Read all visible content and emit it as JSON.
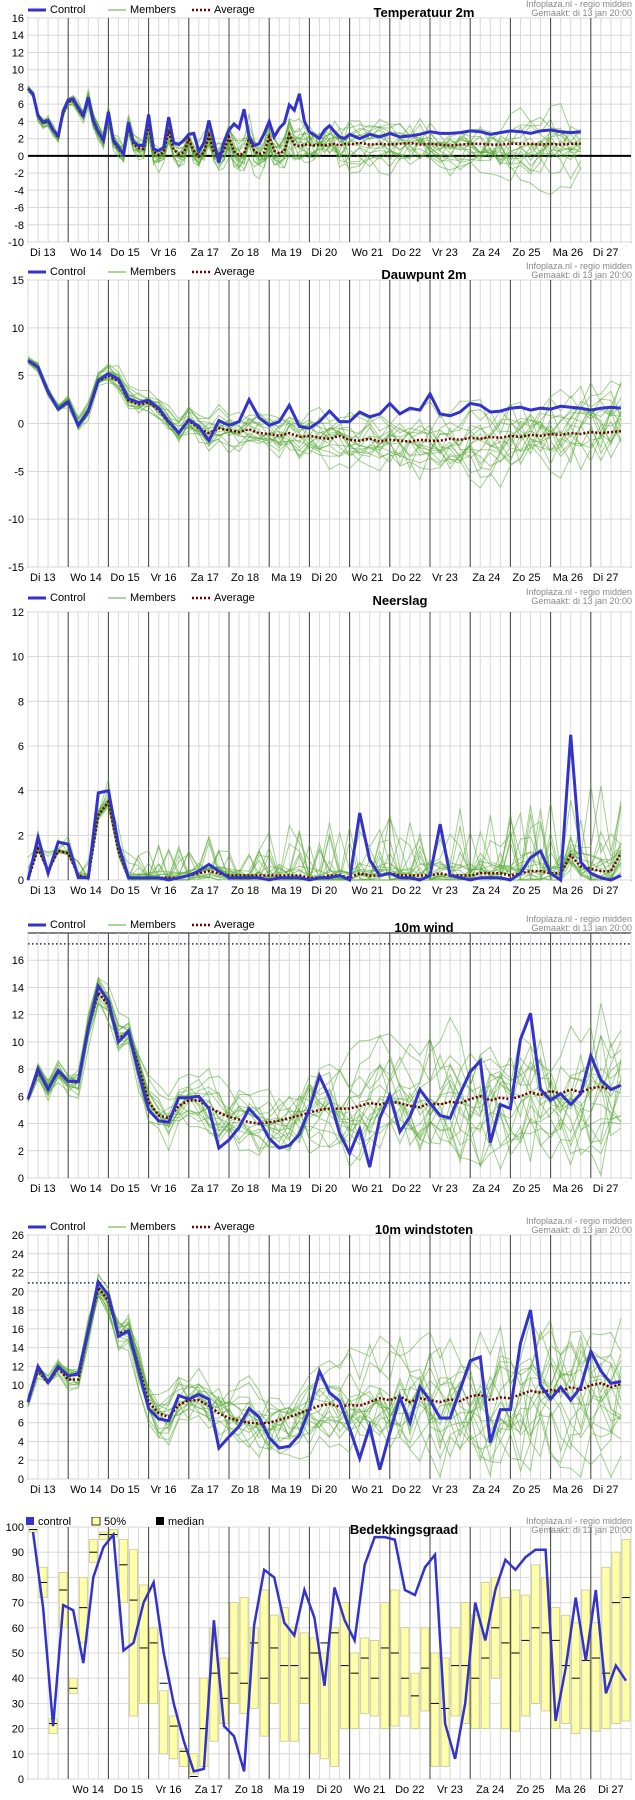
{
  "credit_line1": "Infoplaza.nl - regio midden",
  "credit_line2": "Gemaakt: di 13 jan 20:00",
  "day_labels": [
    "Di 13",
    "Wo 14",
    "Do 15",
    "Vr 16",
    "Za 17",
    "Zo 18",
    "Ma 19",
    "Di 20",
    "Wo 21",
    "Do 22",
    "Vr 23",
    "Za 24",
    "Zo 25",
    "Ma 26",
    "Di 27"
  ],
  "colors": {
    "control": "#3333cc",
    "members": "#55aa33",
    "average": "#6b0000",
    "grid": "#d8d8d8",
    "daysep": "#444444",
    "box": "#ffffaa"
  },
  "chart_data": [
    {
      "type": "line",
      "title": "Temperatuur 2m",
      "legend": [
        "Control",
        "Members",
        "Average"
      ],
      "ylim": [
        -10,
        16
      ],
      "yticks": [
        -10,
        -8,
        -6,
        -4,
        -2,
        0,
        2,
        4,
        6,
        8,
        10,
        12,
        14,
        16
      ],
      "zero_line": true,
      "x": [
        0,
        0.125,
        0.25,
        0.375,
        0.5,
        0.625,
        0.75,
        0.875,
        1,
        1.125,
        1.25,
        1.375,
        1.5,
        1.625,
        1.75,
        1.875,
        2,
        2.125,
        2.25,
        2.375,
        2.5,
        2.625,
        2.75,
        2.875,
        3,
        3.125,
        3.25,
        3.375,
        3.5,
        3.625,
        3.75,
        3.875,
        4,
        4.125,
        4.25,
        4.375,
        4.5,
        4.625,
        4.75,
        4.875,
        5,
        5.125,
        5.25,
        5.375,
        5.5,
        5.625,
        5.75,
        5.875,
        6,
        6.125,
        6.25,
        6.375,
        6.5,
        6.625,
        6.75,
        6.875,
        7,
        7.125,
        7.25,
        7.375,
        7.5,
        7.625,
        7.75,
        7.875,
        8,
        8.25,
        8.5,
        8.75,
        9,
        9.25,
        9.5,
        9.75,
        10,
        10.25,
        10.5,
        10.75,
        11,
        11.25,
        11.5,
        11.75,
        12,
        12.25,
        12.5,
        12.75,
        13,
        13.25,
        13.5,
        13.75,
        14,
        14.25,
        14.5,
        14.75
      ],
      "control": [
        7.8,
        7.2,
        4.7,
        3.9,
        4.1,
        3.0,
        2.3,
        5.2,
        6.5,
        6.6,
        5.6,
        4.7,
        6.8,
        4.1,
        2.8,
        1.8,
        5.1,
        1.8,
        1.0,
        0.2,
        3.9,
        1.6,
        1.2,
        1.2,
        4.8,
        0.8,
        0.6,
        1.0,
        4.5,
        1.5,
        1.3,
        1.8,
        2.5,
        2.6,
        0.5,
        1.5,
        4.1,
        1.7,
        -0.8,
        1.6,
        3.0,
        3.7,
        3.2,
        5.4,
        2.2,
        1.2,
        1.4,
        2.6,
        4.0,
        2.2,
        3.2,
        3.8,
        5.9,
        5.3,
        7.2,
        4.0,
        2.8,
        2.4,
        2.0,
        3.0,
        3.5,
        2.8,
        2.2,
        2.0,
        2.5,
        2.0,
        2.5,
        2.2,
        2.6,
        2.2,
        2.3,
        2.5,
        2.8,
        2.6,
        2.6,
        2.7,
        2.9,
        2.8,
        2.5,
        2.7,
        2.9,
        2.8,
        2.6,
        2.9,
        3.0,
        2.8,
        2.7,
        2.8
      ],
      "average": [
        7.8,
        7.1,
        4.6,
        3.8,
        4.0,
        3.0,
        2.2,
        5.0,
        6.3,
        6.4,
        5.5,
        4.5,
        6.6,
        4.0,
        2.7,
        1.7,
        4.8,
        1.7,
        0.8,
        0.2,
        3.5,
        1.4,
        0.9,
        0.8,
        3.7,
        0.5,
        0.1,
        0.4,
        3.0,
        0.7,
        0.2,
        0.4,
        1.9,
        0.6,
        -0.1,
        0.4,
        2.4,
        0.4,
        0.2,
        0.6,
        2.2,
        0.5,
        0.1,
        0.3,
        2.1,
        0.6,
        0.2,
        0.4,
        2.2,
        0.6,
        0.3,
        0.5,
        2.5,
        1.3,
        1.1,
        1.3,
        1.3,
        1.2,
        1.3,
        1.2,
        1.3,
        1.4,
        1.2,
        1.4,
        1.3,
        1.5,
        1.3,
        1.4,
        1.3,
        1.4,
        1.5,
        1.3,
        1.4,
        1.3,
        1.2,
        1.3,
        1.4,
        1.4,
        1.3,
        1.3,
        1.4,
        1.4,
        1.4,
        1.3,
        1.4,
        1.3,
        1.4,
        1.4
      ]
    },
    {
      "type": "line",
      "title": "Dauwpunt 2m",
      "legend": [
        "Control",
        "Members",
        "Average"
      ],
      "ylim": [
        -15,
        15
      ],
      "yticks": [
        -15,
        -10,
        -5,
        0,
        5,
        10,
        15
      ],
      "x": [
        0,
        0.25,
        0.5,
        0.75,
        1,
        1.25,
        1.5,
        1.75,
        2,
        2.25,
        2.5,
        2.75,
        3,
        3.25,
        3.5,
        3.75,
        4,
        4.25,
        4.5,
        4.75,
        5,
        5.25,
        5.5,
        5.75,
        6,
        6.25,
        6.5,
        6.75,
        7,
        7.25,
        7.5,
        7.75,
        8,
        8.25,
        8.5,
        8.75,
        9,
        9.25,
        9.5,
        9.75,
        10,
        10.25,
        10.5,
        10.75,
        11,
        11.25,
        11.5,
        11.75,
        12,
        12.25,
        12.5,
        12.75,
        13,
        13.25,
        13.5,
        13.75,
        14,
        14.25,
        14.5,
        14.75
      ],
      "control": [
        6.6,
        5.9,
        3.3,
        1.5,
        2.3,
        -0.2,
        1.3,
        4.5,
        5.2,
        4.6,
        2.6,
        2.2,
        2.4,
        1.6,
        0.2,
        -1.0,
        0.4,
        -0.3,
        -1.8,
        0.3,
        -0.2,
        0.2,
        2.5,
        0.6,
        -0.2,
        0.2,
        1.9,
        -0.3,
        -0.5,
        0.2,
        1.3,
        0.2,
        0.2,
        1.2,
        0.7,
        1.0,
        2.1,
        1.0,
        1.6,
        1.4,
        3.1,
        1.0,
        0.8,
        1.2,
        2.1,
        1.9,
        1.2,
        1.3,
        1.6,
        1.7,
        1.4,
        1.6,
        1.5,
        1.8,
        1.7,
        1.6,
        1.4,
        1.6,
        1.7,
        1.6
      ],
      "average": [
        6.6,
        5.9,
        3.2,
        1.5,
        2.2,
        -0.2,
        1.2,
        4.4,
        5.0,
        4.4,
        2.4,
        2.0,
        2.2,
        1.4,
        0.1,
        -1.0,
        0.3,
        -0.5,
        -1.0,
        -0.5,
        -0.7,
        -0.9,
        -0.6,
        -1.0,
        -1.1,
        -1.3,
        -1.0,
        -1.4,
        -1.3,
        -1.5,
        -1.6,
        -1.3,
        -1.7,
        -1.8,
        -1.6,
        -1.9,
        -1.7,
        -1.8,
        -1.9,
        -1.7,
        -1.8,
        -1.8,
        -1.6,
        -1.7,
        -1.5,
        -1.6,
        -1.4,
        -1.5,
        -1.3,
        -1.4,
        -1.2,
        -1.3,
        -1.1,
        -1.2,
        -1.0,
        -1.1,
        -0.9,
        -1.0,
        -0.9,
        -0.8
      ]
    },
    {
      "type": "line",
      "title": "Neerslag",
      "legend": [
        "Control",
        "Members",
        "Average"
      ],
      "ylim": [
        0,
        12
      ],
      "yticks": [
        0,
        2,
        4,
        6,
        8,
        10,
        12
      ],
      "x": [
        0,
        0.25,
        0.5,
        0.75,
        1,
        1.25,
        1.5,
        1.75,
        2,
        2.25,
        2.5,
        2.75,
        3,
        3.25,
        3.5,
        3.75,
        4,
        4.25,
        4.5,
        4.75,
        5,
        5.25,
        5.5,
        5.75,
        6,
        6.25,
        6.5,
        6.75,
        7,
        7.25,
        7.5,
        7.75,
        8,
        8.25,
        8.5,
        8.75,
        9,
        9.25,
        9.5,
        9.75,
        10,
        10.25,
        10.5,
        10.75,
        11,
        11.25,
        11.5,
        11.75,
        12,
        12.25,
        12.5,
        12.75,
        13,
        13.25,
        13.5,
        13.75,
        14,
        14.25,
        14.5,
        14.75
      ],
      "control": [
        0.0,
        1.9,
        0.3,
        1.7,
        1.6,
        0.1,
        0.1,
        3.9,
        4.0,
        1.6,
        0.1,
        0.1,
        0.1,
        0.1,
        0.0,
        0.1,
        0.2,
        0.4,
        0.7,
        0.4,
        0.1,
        0.1,
        0.1,
        0.1,
        0.0,
        0.1,
        0.1,
        0.1,
        0.0,
        0.1,
        0.1,
        0.2,
        0.0,
        3.0,
        0.9,
        0.2,
        0.3,
        0.1,
        0.1,
        0.0,
        0.2,
        2.5,
        0.2,
        0.1,
        0.0,
        0.1,
        0.1,
        0.1,
        0.0,
        0.3,
        1.0,
        1.3,
        0.3,
        0.0,
        6.5,
        0.8,
        0.3,
        0.1,
        0.0,
        0.2
      ],
      "average": [
        0.0,
        1.4,
        0.4,
        1.3,
        1.2,
        0.2,
        0.1,
        2.9,
        3.5,
        1.3,
        0.1,
        0.1,
        0.1,
        0.1,
        0.1,
        0.1,
        0.2,
        0.3,
        0.4,
        0.3,
        0.2,
        0.2,
        0.2,
        0.2,
        0.2,
        0.2,
        0.2,
        0.2,
        0.1,
        0.1,
        0.2,
        0.2,
        0.1,
        0.3,
        0.2,
        0.2,
        0.3,
        0.2,
        0.2,
        0.2,
        0.2,
        0.3,
        0.2,
        0.2,
        0.2,
        0.3,
        0.3,
        0.3,
        0.2,
        0.3,
        0.4,
        0.4,
        0.3,
        0.3,
        1.1,
        0.6,
        0.5,
        0.4,
        0.4,
        1.2
      ]
    },
    {
      "type": "line",
      "title": "10m wind",
      "legend": [
        "Control",
        "Members",
        "Average"
      ],
      "ylim": [
        0,
        18
      ],
      "yticks": [
        0,
        2,
        4,
        6,
        8,
        10,
        12,
        14,
        16
      ],
      "threshold": 17.2,
      "x": [
        0,
        0.25,
        0.5,
        0.75,
        1,
        1.25,
        1.5,
        1.75,
        2,
        2.25,
        2.5,
        2.75,
        3,
        3.25,
        3.5,
        3.75,
        4,
        4.25,
        4.5,
        4.75,
        5,
        5.25,
        5.5,
        5.75,
        6,
        6.25,
        6.5,
        6.75,
        7,
        7.25,
        7.5,
        7.75,
        8,
        8.25,
        8.5,
        8.75,
        9,
        9.25,
        9.5,
        9.75,
        10,
        10.25,
        10.5,
        10.75,
        11,
        11.25,
        11.5,
        11.75,
        12,
        12.25,
        12.5,
        12.75,
        13,
        13.25,
        13.5,
        13.75,
        14,
        14.25,
        14.5,
        14.75
      ],
      "control": [
        5.8,
        8.0,
        6.5,
        7.9,
        7.1,
        7.1,
        11.0,
        14.1,
        13.0,
        10.0,
        10.8,
        7.7,
        5.0,
        4.2,
        4.1,
        5.9,
        5.9,
        6.0,
        5.1,
        2.2,
        2.8,
        3.7,
        5.1,
        4.3,
        2.9,
        2.2,
        2.4,
        3.2,
        5.1,
        7.5,
        5.9,
        3.3,
        1.8,
        3.6,
        0.8,
        4.4,
        6.1,
        3.4,
        4.5,
        6.5,
        5.5,
        4.6,
        4.4,
        6.2,
        7.8,
        8.6,
        2.6,
        5.4,
        5.1,
        10.2,
        12.1,
        6.5,
        5.7,
        6.2,
        5.4,
        6.2,
        9.0,
        7.2,
        6.5,
        6.8
      ],
      "average": [
        5.8,
        7.8,
        6.6,
        7.8,
        7.1,
        7.0,
        11.0,
        13.6,
        12.7,
        10.3,
        10.6,
        8.2,
        5.6,
        4.6,
        4.4,
        5.3,
        5.7,
        5.7,
        5.2,
        4.8,
        4.5,
        4.3,
        4.1,
        4.0,
        4.1,
        4.2,
        4.4,
        4.6,
        4.8,
        5.0,
        5.1,
        5.1,
        5.1,
        5.3,
        5.5,
        5.4,
        5.6,
        5.5,
        5.3,
        5.2,
        5.5,
        5.4,
        5.6,
        5.5,
        5.8,
        6.0,
        5.7,
        5.9,
        5.8,
        6.0,
        6.3,
        6.1,
        6.4,
        6.2,
        6.5,
        6.3,
        6.6,
        6.7,
        6.5,
        6.8
      ]
    },
    {
      "type": "line",
      "title": "10m windstoten",
      "legend": [
        "Control",
        "Members",
        "Average"
      ],
      "ylim": [
        0,
        26
      ],
      "yticks": [
        0,
        2,
        4,
        6,
        8,
        10,
        12,
        14,
        16,
        18,
        20,
        22,
        24,
        26
      ],
      "threshold": 20.9,
      "x": [
        0,
        0.25,
        0.5,
        0.75,
        1,
        1.25,
        1.5,
        1.75,
        2,
        2.25,
        2.5,
        2.75,
        3,
        3.25,
        3.5,
        3.75,
        4,
        4.25,
        4.5,
        4.75,
        5,
        5.25,
        5.5,
        5.75,
        6,
        6.25,
        6.5,
        6.75,
        7,
        7.25,
        7.5,
        7.75,
        8,
        8.25,
        8.5,
        8.75,
        9,
        9.25,
        9.5,
        9.75,
        10,
        10.25,
        10.5,
        10.75,
        11,
        11.25,
        11.5,
        11.75,
        12,
        12.25,
        12.5,
        12.75,
        13,
        13.25,
        13.5,
        13.75,
        14,
        14.25,
        14.5,
        14.75
      ],
      "control": [
        8.2,
        12.0,
        10.3,
        12.0,
        11.0,
        11.2,
        15.8,
        21.0,
        19.6,
        15.2,
        15.8,
        11.6,
        7.5,
        6.4,
        6.2,
        8.9,
        8.5,
        9.0,
        8.5,
        3.3,
        4.5,
        5.6,
        7.5,
        6.6,
        4.4,
        3.3,
        3.5,
        4.7,
        7.4,
        11.5,
        9.2,
        8.3,
        5.4,
        2.2,
        5.6,
        1.0,
        4.9,
        8.7,
        6.0,
        9.8,
        8.4,
        6.5,
        6.5,
        9.5,
        12.6,
        13.0,
        3.9,
        7.4,
        7.4,
        14.5,
        18.0,
        10.0,
        8.5,
        9.8,
        8.4,
        9.8,
        13.6,
        11.5,
        10.2,
        10.4
      ],
      "average": [
        8.2,
        11.6,
        10.2,
        11.8,
        10.6,
        10.6,
        15.8,
        20.4,
        19.0,
        15.5,
        15.8,
        12.0,
        8.2,
        7.0,
        6.6,
        7.9,
        8.4,
        8.4,
        7.8,
        7.0,
        6.5,
        6.2,
        6.0,
        5.9,
        6.0,
        6.3,
        6.6,
        7.0,
        7.4,
        7.8,
        8.0,
        7.7,
        7.9,
        7.8,
        8.2,
        8.6,
        8.4,
        8.8,
        8.2,
        8.6,
        8.4,
        8.2,
        8.5,
        8.3,
        8.8,
        9.0,
        8.4,
        8.7,
        8.6,
        9.0,
        9.4,
        9.2,
        9.5,
        9.3,
        9.8,
        9.5,
        10.0,
        10.2,
        9.8,
        10.1
      ]
    },
    {
      "type": "line",
      "title": "Bedekkingsgraad",
      "legend": [
        "control",
        "50%",
        "median"
      ],
      "ylim": [
        0,
        100
      ],
      "yticks": [
        0,
        10,
        20,
        30,
        40,
        50,
        60,
        70,
        80,
        90,
        100
      ],
      "x": [
        0,
        0.25,
        0.5,
        0.75,
        1,
        1.25,
        1.5,
        1.75,
        2,
        2.25,
        2.5,
        2.75,
        3,
        3.25,
        3.5,
        3.75,
        4,
        4.25,
        4.5,
        4.75,
        5,
        5.25,
        5.5,
        5.75,
        6,
        6.25,
        6.5,
        6.75,
        7,
        7.25,
        7.5,
        7.75,
        8,
        8.25,
        8.5,
        8.75,
        9,
        9.25,
        9.5,
        9.75,
        10,
        10.25,
        10.5,
        10.75,
        11,
        11.25,
        11.5,
        11.75,
        12,
        12.25,
        12.5,
        12.75,
        13,
        13.25,
        13.5,
        13.75,
        14,
        14.25,
        14.5,
        14.75
      ],
      "control": [
        98,
        68,
        21,
        69,
        67,
        46,
        80,
        92,
        97,
        51,
        54,
        70,
        78,
        50,
        30,
        15,
        3,
        4,
        63,
        21,
        17,
        3,
        61,
        83,
        80,
        62,
        57,
        75,
        64,
        37,
        76,
        63,
        55,
        85,
        96,
        96,
        95,
        75,
        73,
        84,
        89,
        22,
        8,
        30,
        70,
        55,
        75,
        87,
        83,
        88,
        91,
        91,
        23,
        44,
        72,
        47,
        75,
        34,
        45,
        39
      ],
      "box_low": [
        98,
        72,
        18,
        60,
        34,
        54,
        86,
        95,
        96,
        70,
        25,
        30,
        30,
        10,
        8,
        5,
        2,
        5,
        15,
        22,
        30,
        26,
        28,
        17,
        30,
        15,
        15,
        30,
        10,
        8,
        5,
        20,
        20,
        26,
        25,
        20,
        21,
        25,
        20,
        27,
        5,
        5,
        25,
        22,
        20,
        20,
        40,
        20,
        19,
        25,
        30,
        27,
        20,
        22,
        18,
        20,
        19,
        20,
        22,
        23
      ],
      "box_high": [
        99,
        84,
        24,
        82,
        40,
        80,
        95,
        98,
        99,
        95,
        91,
        77,
        60,
        35,
        25,
        12,
        10,
        40,
        60,
        48,
        70,
        72,
        60,
        75,
        65,
        68,
        60,
        58,
        56,
        50,
        60,
        70,
        50,
        56,
        55,
        70,
        75,
        60,
        42,
        60,
        50,
        48,
        60,
        70,
        65,
        78,
        80,
        72,
        75,
        73,
        85,
        80,
        68,
        65,
        62,
        75,
        62,
        84,
        90,
        95
      ],
      "median": [
        99,
        78,
        22,
        75,
        36,
        68,
        90,
        97,
        97,
        85,
        71,
        52,
        54,
        38,
        21,
        11,
        1,
        20,
        42,
        32,
        42,
        38,
        54,
        40,
        52,
        45,
        45,
        40,
        50,
        54,
        58,
        45,
        42,
        48,
        40,
        52,
        50,
        40,
        33,
        44,
        30,
        28,
        45,
        45,
        40,
        48,
        60,
        54,
        50,
        55,
        60,
        58,
        55,
        45,
        40,
        47,
        48,
        42,
        70,
        72
      ]
    }
  ]
}
